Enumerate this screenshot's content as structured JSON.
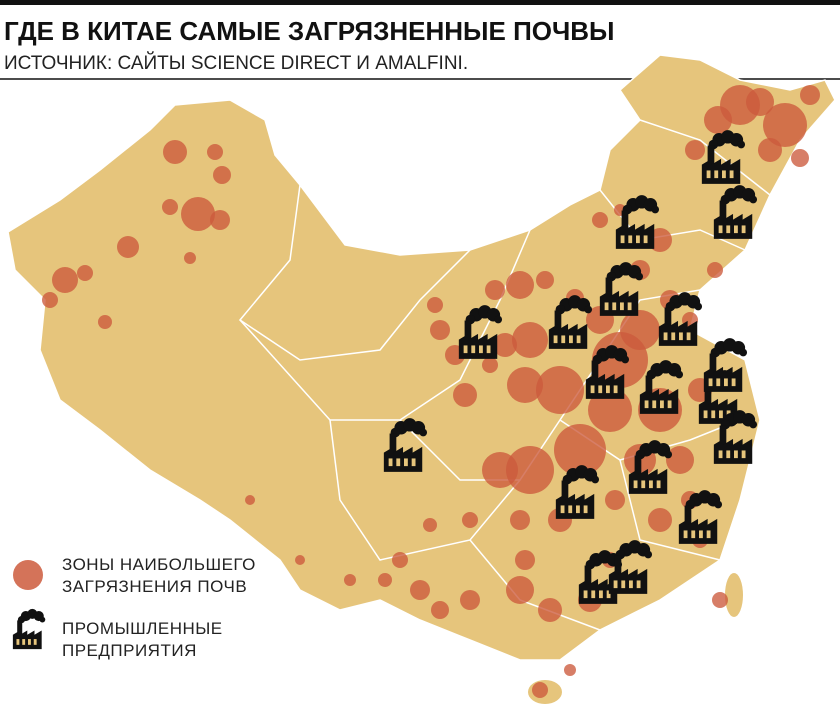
{
  "header": {
    "title": "ГДЕ В КИТАЕ САМЫЕ ЗАГРЯЗНЕННЫЕ ПОЧВЫ",
    "subtitle": "ИСТОЧНИК: САЙТЫ SCIENCE DIRECT И AMALFINI."
  },
  "legend": {
    "items": [
      {
        "lines": [
          "ЗОНЫ НАИБОЛЬШЕГО",
          "ЗАГРЯЗНЕНИЯ ПОЧВ"
        ]
      },
      {
        "lines": [
          "ПРОМЫШЛЕННЫЕ",
          "ПРЕДПРИЯТИЯ"
        ]
      }
    ]
  }
}
